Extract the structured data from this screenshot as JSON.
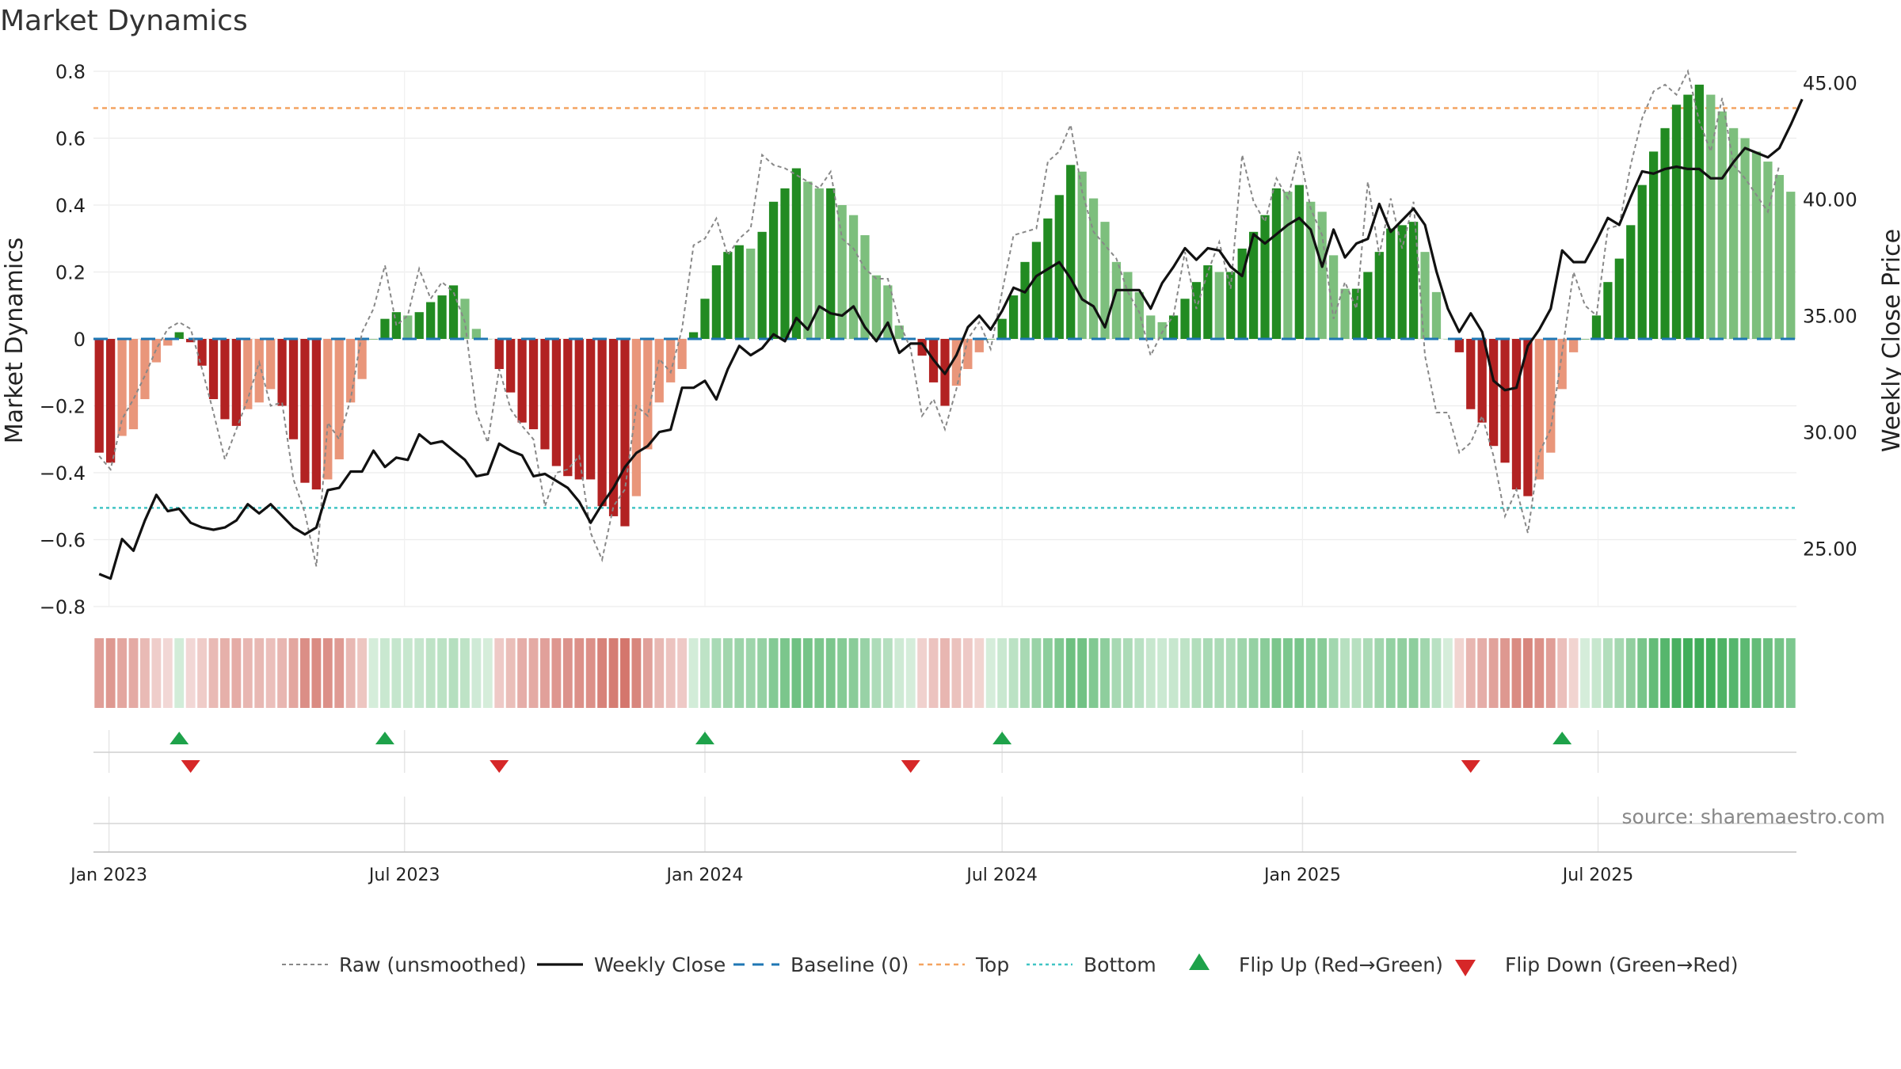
{
  "chart_data": {
    "type": "bar",
    "title": "Market Dynamics",
    "ylabel": "Market Dynamics",
    "y2label": "Weekly Close Price",
    "ylim": [
      -0.8,
      0.8
    ],
    "y2lim": [
      22.5,
      45.5
    ],
    "yticks": [
      "0.8",
      "0.6",
      "0.4",
      "0.2",
      "0",
      "−0.2",
      "−0.4",
      "−0.6",
      "−0.8"
    ],
    "y2ticks": [
      "45.00",
      "40.00",
      "35.00",
      "30.00",
      "25.00"
    ],
    "xticks": [
      "Jan 2023",
      "Jul 2023",
      "Jan 2024",
      "Jul 2024",
      "Jan 2025",
      "Jul 2025"
    ],
    "x_start": "2022-12-26",
    "x_interval": "weekly",
    "top_level": 0.69,
    "bottom_level": -0.505,
    "baseline": 0,
    "series": [
      {
        "name": "Smoothed",
        "values": [
          -0.34,
          -0.37,
          -0.29,
          -0.27,
          -0.18,
          -0.07,
          -0.02,
          0.02,
          -0.01,
          -0.08,
          -0.18,
          -0.24,
          -0.26,
          -0.21,
          -0.19,
          -0.15,
          -0.2,
          -0.3,
          -0.43,
          -0.45,
          -0.42,
          -0.36,
          -0.19,
          -0.12,
          0,
          0.06,
          0.08,
          0.07,
          0.08,
          0.11,
          0.13,
          0.16,
          0.12,
          0.03,
          0,
          -0.09,
          -0.16,
          -0.25,
          -0.27,
          -0.33,
          -0.38,
          -0.41,
          -0.42,
          -0.42,
          -0.5,
          -0.53,
          -0.56,
          -0.47,
          -0.33,
          -0.19,
          -0.13,
          -0.09,
          0.02,
          0.12,
          0.22,
          0.26,
          0.28,
          0.27,
          0.32,
          0.41,
          0.45,
          0.51,
          0.47,
          0.45,
          0.45,
          0.4,
          0.37,
          0.31,
          0.19,
          0.16,
          0.04,
          0,
          -0.05,
          -0.13,
          -0.2,
          -0.14,
          -0.09,
          -0.04,
          0,
          0.06,
          0.13,
          0.23,
          0.29,
          0.36,
          0.43,
          0.52,
          0.5,
          0.42,
          0.35,
          0.23,
          0.2,
          0.14,
          0.07,
          0.05,
          0.07,
          0.12,
          0.17,
          0.22,
          0.2,
          0.2,
          0.27,
          0.32,
          0.37,
          0.45,
          0.44,
          0.46,
          0.41,
          0.38,
          0.25,
          0.15,
          0.15,
          0.2,
          0.26,
          0.33,
          0.34,
          0.35,
          0.26,
          0.14,
          0,
          -0.04,
          -0.21,
          -0.25,
          -0.32,
          -0.37,
          -0.45,
          -0.47,
          -0.42,
          -0.34,
          -0.15,
          -0.04,
          0,
          0.07,
          0.17,
          0.24,
          0.34,
          0.46,
          0.56,
          0.63,
          0.7,
          0.73,
          0.76,
          0.73,
          0.68,
          0.63,
          0.6,
          0.56,
          0.53,
          0.49,
          0.44
        ]
      },
      {
        "name": "Raw (unsmoothed)",
        "values": [
          -0.35,
          -0.39,
          -0.24,
          -0.18,
          -0.11,
          -0.03,
          0.03,
          0.05,
          0.03,
          -0.09,
          -0.22,
          -0.36,
          -0.27,
          -0.18,
          -0.07,
          -0.2,
          -0.19,
          -0.42,
          -0.52,
          -0.68,
          -0.25,
          -0.3,
          -0.18,
          0.02,
          0.09,
          0.22,
          0.04,
          0.07,
          0.21,
          0.12,
          0.17,
          0.14,
          0.05,
          -0.22,
          -0.31,
          -0.09,
          -0.21,
          -0.26,
          -0.3,
          -0.5,
          -0.4,
          -0.39,
          -0.35,
          -0.58,
          -0.66,
          -0.5,
          -0.45,
          -0.2,
          -0.23,
          -0.06,
          -0.1,
          0.03,
          0.28,
          0.3,
          0.36,
          0.25,
          0.3,
          0.33,
          0.55,
          0.52,
          0.51,
          0.49,
          0.47,
          0.45,
          0.5,
          0.3,
          0.27,
          0.21,
          0.18,
          0.18,
          0.05,
          -0.03,
          -0.23,
          -0.18,
          -0.27,
          -0.15,
          0,
          0.05,
          -0.03,
          0.14,
          0.31,
          0.32,
          0.33,
          0.53,
          0.56,
          0.64,
          0.44,
          0.32,
          0.28,
          0.24,
          0.14,
          0.08,
          -0.05,
          0.02,
          0.07,
          0.26,
          0.09,
          0.2,
          0.29,
          0.15,
          0.55,
          0.41,
          0.35,
          0.48,
          0.42,
          0.56,
          0.39,
          0.31,
          0.06,
          0.17,
          0.09,
          0.47,
          0.25,
          0.42,
          0.27,
          0.41,
          -0.05,
          -0.22,
          -0.22,
          -0.34,
          -0.31,
          -0.23,
          -0.35,
          -0.53,
          -0.45,
          -0.58,
          -0.34,
          -0.27,
          -0.04,
          0.2,
          0.1,
          0.07,
          0.33,
          0.34,
          0.52,
          0.66,
          0.74,
          0.76,
          0.73,
          0.8,
          0.65,
          0.56,
          0.72,
          0.52,
          0.48,
          0.43,
          0.38,
          0.52
        ]
      },
      {
        "name": "Weekly Close",
        "values": [
          23.9,
          23.7,
          25.4,
          24.9,
          26.2,
          27.3,
          26.6,
          26.7,
          26.1,
          25.9,
          25.8,
          25.9,
          26.2,
          26.9,
          26.5,
          26.9,
          26.4,
          25.9,
          25.6,
          25.9,
          27.5,
          27.6,
          28.3,
          28.3,
          29.2,
          28.5,
          28.9,
          28.8,
          29.9,
          29.5,
          29.6,
          29.2,
          28.8,
          28.1,
          28.2,
          29.5,
          29.2,
          29.0,
          28.1,
          28.2,
          27.9,
          27.6,
          27.0,
          26.1,
          26.9,
          27.6,
          28.5,
          29.1,
          29.4,
          30.0,
          30.1,
          31.9,
          31.9,
          32.2,
          31.4,
          32.7,
          33.7,
          33.3,
          33.6,
          34.2,
          33.9,
          34.9,
          34.4,
          35.4,
          35.1,
          35.0,
          35.4,
          34.5,
          33.9,
          34.7,
          33.4,
          33.8,
          33.8,
          33.1,
          32.5,
          33.3,
          34.5,
          35.0,
          34.4,
          35.2,
          36.2,
          36.0,
          36.7,
          37.0,
          37.3,
          36.6,
          35.7,
          35.4,
          34.5,
          36.1,
          36.1,
          36.1,
          35.3,
          36.4,
          37.1,
          37.9,
          37.4,
          37.9,
          37.8,
          37.1,
          36.7,
          38.5,
          38.1,
          38.5,
          38.9,
          39.2,
          38.7,
          37.1,
          38.7,
          37.5,
          38.1,
          38.3,
          39.8,
          38.6,
          39.1,
          39.6,
          38.9,
          36.9,
          35.3,
          34.3,
          35.1,
          34.3,
          32.2,
          31.8,
          31.9,
          33.7,
          34.4,
          35.3,
          37.8,
          37.3,
          37.3,
          38.2,
          39.2,
          38.9,
          40.1,
          41.2,
          41.1,
          41.3,
          41.4,
          41.3,
          41.3,
          40.9,
          40.9,
          41.6,
          42.2,
          42.0,
          41.8,
          42.2,
          43.2,
          44.3
        ]
      }
    ],
    "flip_up_weeks": [
      7,
      25,
      53,
      79,
      128
    ],
    "flip_down_weeks": [
      8,
      35,
      71,
      120
    ],
    "legend_position": "bottom",
    "legend": [
      "Raw (unsmoothed)",
      "Weekly Close",
      "Baseline (0)",
      "Top",
      "Bottom",
      "Flip Up (Red→Green)",
      "Flip Down (Green→Red)"
    ],
    "source": "source: sharemaestro.com",
    "colors": {
      "strong_up": "#228b22",
      "weak_up": "#7dbf7d",
      "strong_down": "#b22222",
      "weak_down": "#e9967a",
      "raw": "#888888",
      "close": "#111111",
      "baseline": "#1f77b4",
      "top": "#f4a460",
      "bottom": "#40c4c4",
      "flip_up": "#1ea24a",
      "flip_down": "#d62728"
    }
  }
}
